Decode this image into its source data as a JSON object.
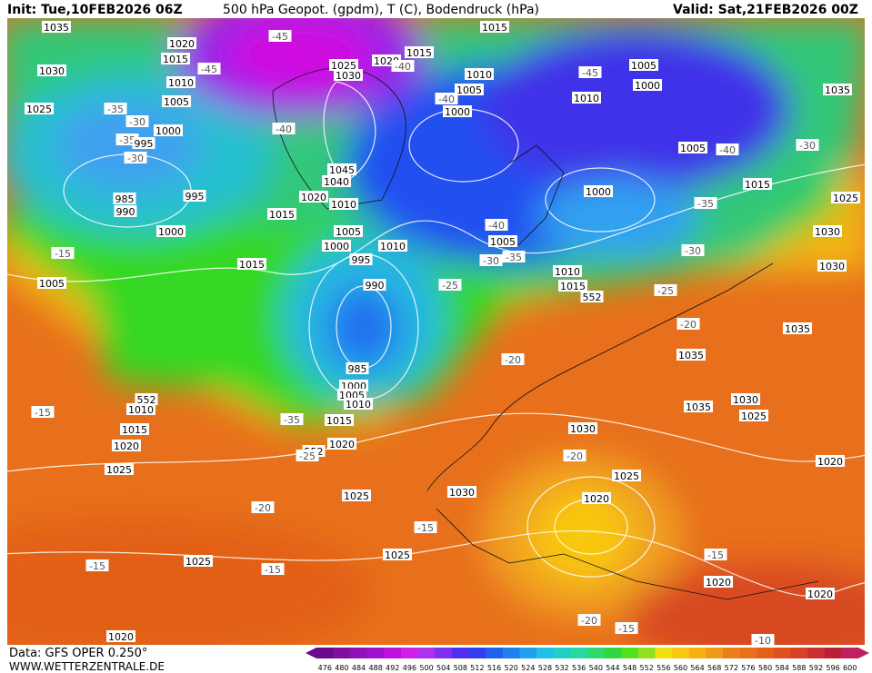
{
  "header": {
    "init": "Init: Tue,10FEB2026 06Z",
    "title": "500 hPa Geopot. (gpdm), T (C), Bodendruck (hPa)",
    "valid": "Valid: Sat,21FEB2026 00Z"
  },
  "footer": {
    "data": "Data: GFS OPER 0.250°",
    "site": "WWW.WETTERZENTRALE.DE"
  },
  "colorbar": {
    "ticks": [
      "476",
      "480",
      "484",
      "488",
      "492",
      "496",
      "500",
      "504",
      "508",
      "512",
      "516",
      "520",
      "524",
      "528",
      "532",
      "536",
      "540",
      "544",
      "548",
      "552",
      "556",
      "560",
      "564",
      "568",
      "572",
      "576",
      "580",
      "584",
      "588",
      "592",
      "596",
      "600"
    ]
  },
  "map": {
    "labels": [
      "1035",
      "1020",
      "1015",
      "-45",
      "1030",
      "1010",
      "1025",
      "1030",
      "1020",
      "-40",
      "1015",
      "1015",
      "-45",
      "1010",
      "1005",
      "-40",
      "1000",
      "-45",
      "1005",
      "1000",
      "1010",
      "1035",
      "1025",
      "-35",
      "-30",
      "1005",
      "1000",
      "-40",
      "-35",
      "995",
      "-30",
      "1005",
      "-40",
      "-30",
      "1045",
      "1040",
      "1020",
      "1010",
      "995",
      "985",
      "990",
      "1015",
      "1000",
      "-35",
      "1025",
      "1015",
      "1000",
      "1005",
      "1000",
      "1010",
      "-40",
      "1005",
      "-35",
      "-30",
      "-30",
      "1030",
      "1030",
      "-15",
      "1015",
      "995",
      "1005",
      "990",
      "-25",
      "1010",
      "1015",
      "552",
      "-25",
      "-20",
      "1035",
      "-20",
      "1035",
      "985",
      "1000",
      "1005",
      "1010",
      "552",
      "1010",
      "-15",
      "1030",
      "1035",
      "1025",
      "1015",
      "-35",
      "1015",
      "1020",
      "1020",
      "552",
      "-25",
      "1030",
      "-20",
      "1025",
      "1025",
      "1020",
      "1030",
      "1025",
      "1020",
      "-20",
      "-15",
      "1025",
      "-15",
      "1025",
      "-15",
      "-15",
      "1020",
      "1020",
      "-20",
      "-15",
      "1020",
      "-10"
    ]
  }
}
